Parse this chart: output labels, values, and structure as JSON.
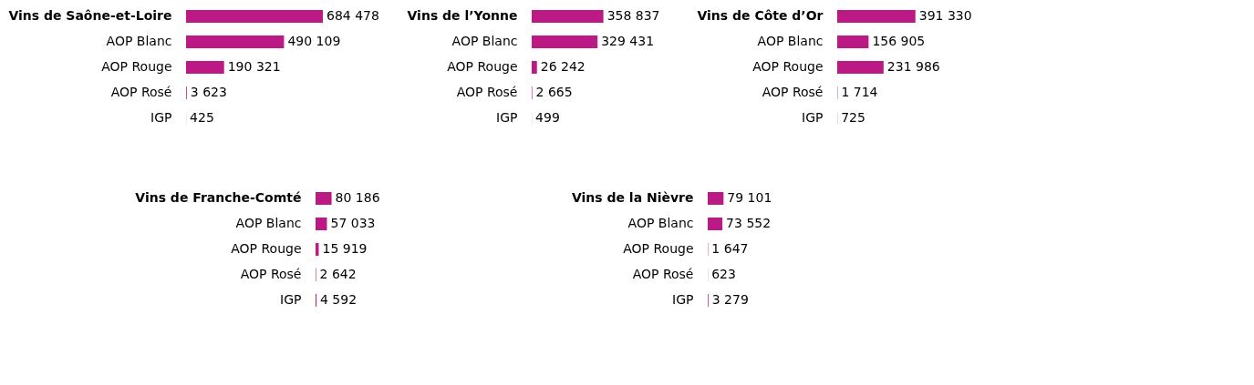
{
  "chart_data": [
    {
      "type": "bar",
      "orientation": "horizontal",
      "color": "#bb1a84",
      "categories": [
        "Vins de Saône-et-Loire",
        "AOP Blanc",
        "AOP Rouge",
        "AOP Rosé",
        "IGP"
      ],
      "values": [
        684478,
        490109,
        190321,
        3623,
        425
      ],
      "value_labels": [
        "684 478",
        "490 109",
        "190 321",
        "3 623",
        "425"
      ]
    },
    {
      "type": "bar",
      "orientation": "horizontal",
      "color": "#bb1a84",
      "categories": [
        "Vins de l’Yonne",
        "AOP Blanc",
        "AOP Rouge",
        "AOP Rosé",
        "IGP"
      ],
      "values": [
        358837,
        329431,
        26242,
        2665,
        499
      ],
      "value_labels": [
        "358 837",
        "329 431",
        "26 242",
        "2 665",
        "499"
      ]
    },
    {
      "type": "bar",
      "orientation": "horizontal",
      "color": "#bb1a84",
      "categories": [
        "Vins de Côte d’Or",
        "AOP Blanc",
        "AOP Rouge",
        "AOP Rosé",
        "IGP"
      ],
      "values": [
        391330,
        156905,
        231986,
        1714,
        725
      ],
      "value_labels": [
        "391 330",
        "156 905",
        "231 986",
        "1 714",
        "725"
      ]
    },
    {
      "type": "bar",
      "orientation": "horizontal",
      "color": "#bb1a84",
      "categories": [
        "Vins de Franche-Comté",
        "AOP Blanc",
        "AOP Rouge",
        "AOP Rosé",
        "IGP"
      ],
      "values": [
        80186,
        57033,
        15919,
        2642,
        4592
      ],
      "value_labels": [
        "80 186",
        "57 033",
        "15 919",
        "2 642",
        "4 592"
      ]
    },
    {
      "type": "bar",
      "orientation": "horizontal",
      "color": "#bb1a84",
      "categories": [
        "Vins de la Nièvre",
        "AOP Blanc",
        "AOP Rouge",
        "AOP Rosé",
        "IGP"
      ],
      "values": [
        79101,
        73552,
        1647,
        623,
        3279
      ],
      "value_labels": [
        "79 101",
        "73 552",
        "1 647",
        "623",
        "3 279"
      ]
    }
  ]
}
